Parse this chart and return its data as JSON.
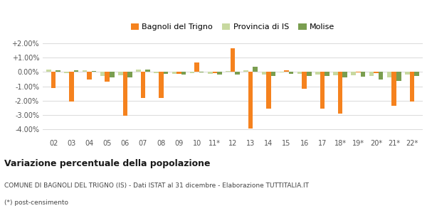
{
  "categories": [
    "02",
    "03",
    "04",
    "05",
    "06",
    "07",
    "08",
    "09",
    "10",
    "11*",
    "12",
    "13",
    "14",
    "15",
    "16",
    "17",
    "18*",
    "19*",
    "20*",
    "21*",
    "22*"
  ],
  "bagnoli": [
    -1.1,
    -2.05,
    -0.55,
    -0.7,
    -3.05,
    -1.8,
    -1.8,
    -0.15,
    0.65,
    -0.1,
    1.65,
    -3.95,
    -2.55,
    0.1,
    -1.15,
    -2.55,
    -2.9,
    -0.05,
    -0.1,
    -2.35,
    -2.05
  ],
  "provincia": [
    0.18,
    -0.08,
    0.14,
    -0.3,
    -0.22,
    0.15,
    -0.08,
    -0.12,
    -0.08,
    -0.12,
    0.08,
    0.12,
    -0.2,
    -0.04,
    -0.12,
    -0.18,
    -0.25,
    -0.22,
    -0.3,
    -0.4,
    -0.18
  ],
  "molise": [
    0.1,
    0.1,
    0.08,
    -0.38,
    -0.37,
    0.17,
    -0.14,
    -0.16,
    -0.05,
    -0.19,
    -0.19,
    0.38,
    -0.28,
    -0.13,
    -0.28,
    -0.28,
    -0.38,
    -0.33,
    -0.52,
    -0.62,
    -0.28
  ],
  "color_bagnoli": "#f5821e",
  "color_provincia": "#c8d9a0",
  "color_molise": "#7a9e50",
  "legend_labels": [
    "Bagnoli del Trigno",
    "Provincia di IS",
    "Molise"
  ],
  "ylim": [
    -4.5,
    2.5
  ],
  "yticks": [
    -4.0,
    -3.0,
    -2.0,
    -1.0,
    0.0,
    1.0,
    2.0
  ],
  "ytick_labels": [
    "-4.00%",
    "-3.00%",
    "-2.00%",
    "-1.00%",
    "0.00%",
    "+1.00%",
    "+2.00%"
  ],
  "bg_color": "#ffffff",
  "plot_bg": "#ffffff",
  "title_bold": "Variazione percentuale della popolazione",
  "subtitle": "COMUNE DI BAGNOLI DEL TRIGNO (IS) - Dati ISTAT al 31 dicembre - Elaborazione TUTTITALIA.IT",
  "footnote": "(*) post-censimento",
  "bar_width": 0.26
}
